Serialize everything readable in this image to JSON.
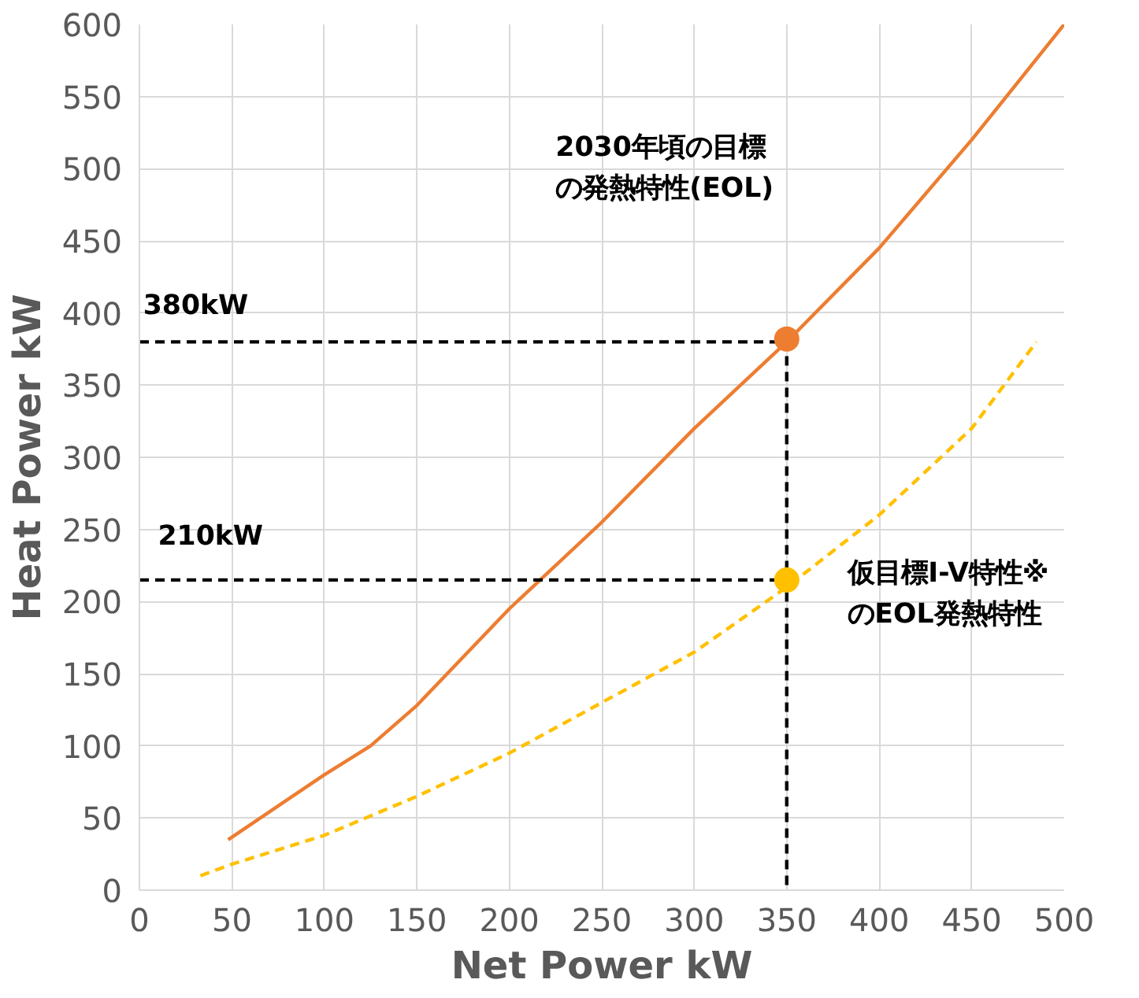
{
  "chart_data": {
    "type": "line",
    "xlabel": "Net Power kW",
    "ylabel": "Heat Power kW",
    "xlim": [
      0,
      500
    ],
    "ylim": [
      0,
      600
    ],
    "xticks": [
      0,
      50,
      100,
      150,
      200,
      250,
      300,
      350,
      400,
      450,
      500
    ],
    "yticks": [
      0,
      50,
      100,
      150,
      200,
      250,
      300,
      350,
      400,
      450,
      500,
      550,
      600
    ],
    "grid": true,
    "series": [
      {
        "color": "#ed7d31",
        "line_style": "solid",
        "x": [
          48,
          100,
          125,
          150,
          200,
          250,
          300,
          350,
          400,
          450,
          500
        ],
        "values": [
          35,
          80,
          100,
          128,
          195,
          255,
          320,
          380,
          445,
          520,
          600
        ]
      },
      {
        "color": "#ffc000",
        "line_style": "dashed",
        "x": [
          33,
          50,
          100,
          150,
          200,
          250,
          300,
          350,
          400,
          450,
          485
        ],
        "values": [
          10,
          18,
          38,
          65,
          95,
          130,
          165,
          210,
          260,
          320,
          380
        ]
      },
      {
        "color": "#000000",
        "line_style": "dashed",
        "x": [
          0,
          350,
          350
        ],
        "values": [
          380,
          380,
          0
        ]
      },
      {
        "color": "#000000",
        "line_style": "dashed",
        "x": [
          0,
          350
        ],
        "values": [
          215,
          215
        ]
      },
      {
        "type": "scatter",
        "color": "#ed7d31",
        "marker": "circle",
        "x": [
          350
        ],
        "values": [
          382
        ]
      },
      {
        "type": "scatter",
        "color": "#ffc000",
        "marker": "circle",
        "x": [
          350
        ],
        "values": [
          215
        ]
      }
    ],
    "annotations": [
      "2030年頃の目標の発熱特性(EOL)",
      "仮目標I-V特性※のEOL発熱特性",
      "380kW",
      "210kW"
    ]
  }
}
